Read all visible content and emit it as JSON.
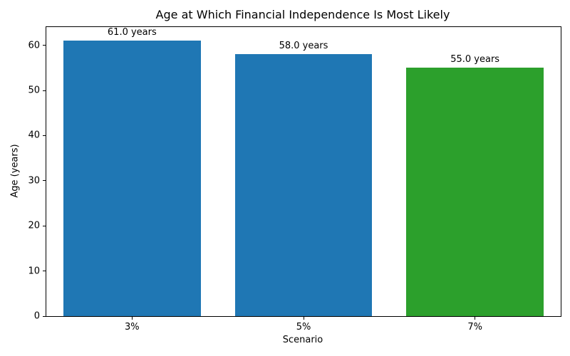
{
  "chart_data": {
    "type": "bar",
    "title": "Age at Which Financial Independence Is Most Likely",
    "xlabel": "Scenario",
    "ylabel": "Age (years)",
    "categories": [
      "3%",
      "5%",
      "7%"
    ],
    "values": [
      61.0,
      58.0,
      55.0
    ],
    "bar_labels": [
      "61.0 years",
      "58.0 years",
      "55.0 years"
    ],
    "bar_colors": [
      "#1f77b4",
      "#1f77b4",
      "#2ca02c"
    ],
    "ylim": [
      0,
      64.05
    ],
    "yticks": [
      0,
      10,
      20,
      30,
      40,
      50,
      60
    ],
    "grid": false,
    "legend": "none",
    "background_color": "#ffffff",
    "spine_color": "#000000",
    "text_color": "#000000"
  }
}
